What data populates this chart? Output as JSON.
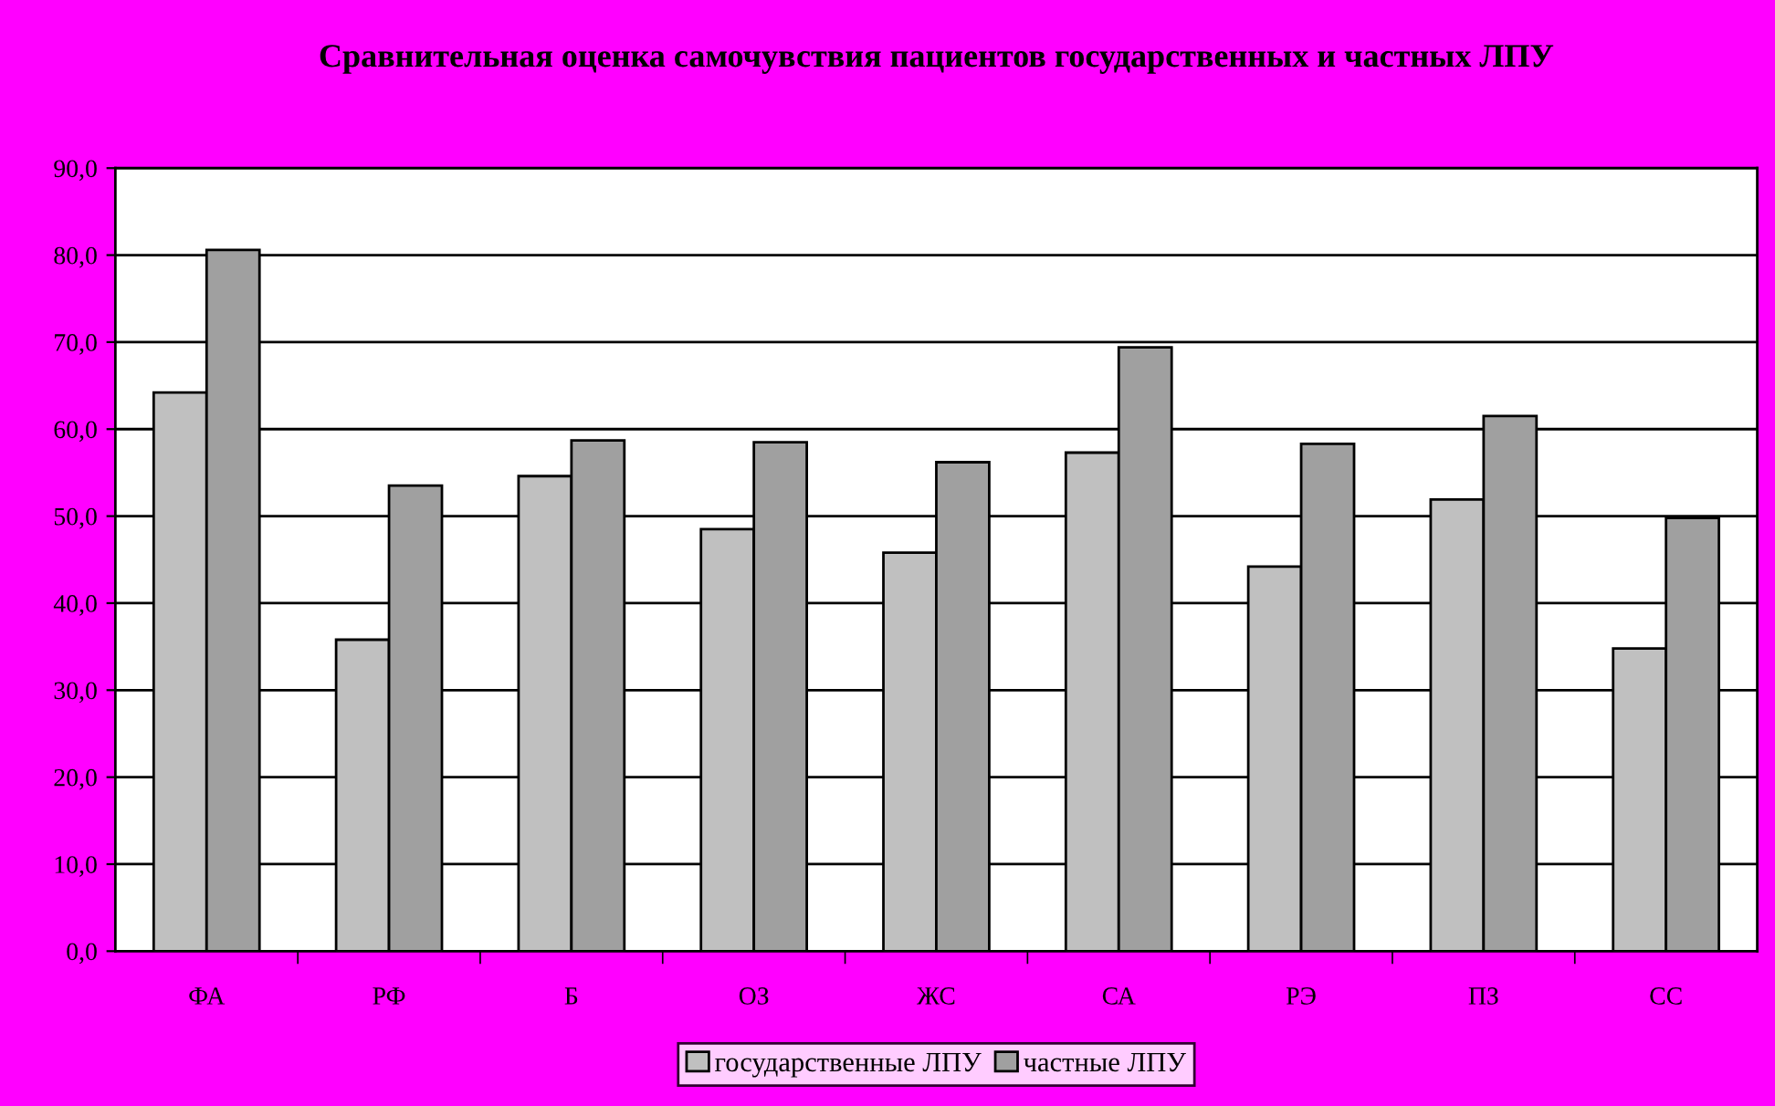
{
  "chart_data": {
    "type": "bar",
    "title": "Сравнительная оценка самочувствия пациентов государственных и частных ЛПУ",
    "categories": [
      "ФА",
      "РФ",
      "Б",
      "ОЗ",
      "ЖС",
      "СА",
      "РЭ",
      "ПЗ",
      "СС"
    ],
    "series": [
      {
        "name": "государственные ЛПУ",
        "color": "#c0c0c0",
        "values": [
          64.2,
          35.8,
          54.6,
          48.5,
          45.8,
          57.3,
          44.2,
          51.9,
          34.8
        ]
      },
      {
        "name": "частные ЛПУ",
        "color": "#a0a0a0",
        "values": [
          80.6,
          53.5,
          58.7,
          58.5,
          56.2,
          69.4,
          58.3,
          61.5,
          49.8
        ]
      }
    ],
    "ylim": [
      0,
      90
    ],
    "yticks": [
      {
        "value": 0,
        "label": "0,0"
      },
      {
        "value": 10,
        "label": "10,0"
      },
      {
        "value": 20,
        "label": "20,0"
      },
      {
        "value": 30,
        "label": "30,0"
      },
      {
        "value": 40,
        "label": "40,0"
      },
      {
        "value": 50,
        "label": "50,0"
      },
      {
        "value": 60,
        "label": "60,0"
      },
      {
        "value": 70,
        "label": "70,0"
      },
      {
        "value": 80,
        "label": "80,0"
      },
      {
        "value": 90,
        "label": "90,0"
      }
    ],
    "grid": "y",
    "legend": "bottom"
  }
}
